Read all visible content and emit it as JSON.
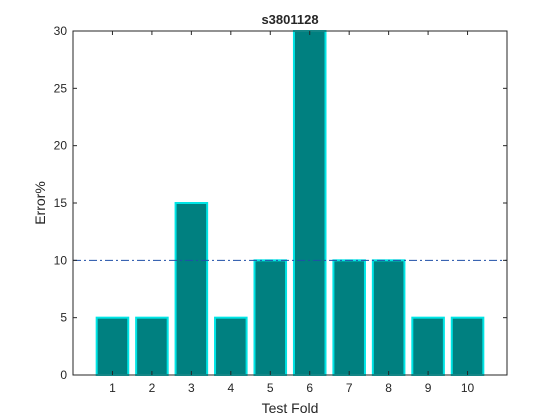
{
  "chart_data": {
    "type": "bar",
    "title": "s3801128",
    "xlabel": "Test Fold",
    "ylabel": "Error%",
    "categories": [
      "1",
      "2",
      "3",
      "4",
      "5",
      "6",
      "7",
      "8",
      "9",
      "10"
    ],
    "values": [
      5,
      5,
      15,
      5,
      10,
      30,
      10,
      10,
      5,
      5
    ],
    "xlim": [
      0,
      11
    ],
    "ylim": [
      0,
      30
    ],
    "yticks": [
      0,
      5,
      10,
      15,
      20,
      25,
      30
    ],
    "reference_line": {
      "y": 10,
      "style": "dash-dot",
      "color": "#1f4fa8"
    },
    "grid": false,
    "legend": "none",
    "colors": {
      "bar_fill": "#008080",
      "bar_edge": "#00e5e5",
      "axis": "#262626",
      "background": "#ffffff"
    }
  }
}
